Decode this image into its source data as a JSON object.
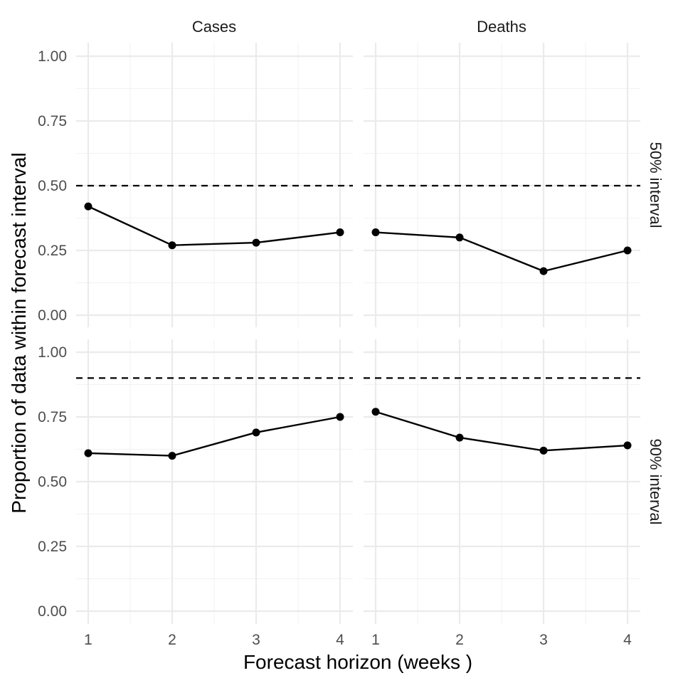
{
  "chart_data": {
    "type": "line",
    "xlabel": "Forecast horizon (weeks )",
    "ylabel": "Proportion of data within forecast interval",
    "x": [
      1,
      2,
      3,
      4
    ],
    "x_ticks": [
      "1",
      "2",
      "3",
      "4"
    ],
    "ylim": [
      0,
      1
    ],
    "y_ticks": [
      "0.00",
      "0.25",
      "0.50",
      "0.75",
      "1.00"
    ],
    "grid": true,
    "columns": [
      "Cases",
      "Deaths"
    ],
    "rows": [
      "50% interval",
      "90% interval"
    ],
    "panels": [
      {
        "column": "Cases",
        "row": "50% interval",
        "reference": 0.5,
        "values": [
          0.42,
          0.27,
          0.28,
          0.32
        ]
      },
      {
        "column": "Deaths",
        "row": "50% interval",
        "reference": 0.5,
        "values": [
          0.32,
          0.3,
          0.17,
          0.25
        ]
      },
      {
        "column": "Cases",
        "row": "90% interval",
        "reference": 0.9,
        "values": [
          0.61,
          0.6,
          0.69,
          0.75
        ]
      },
      {
        "column": "Deaths",
        "row": "90% interval",
        "reference": 0.9,
        "values": [
          0.77,
          0.67,
          0.62,
          0.64
        ]
      }
    ]
  }
}
